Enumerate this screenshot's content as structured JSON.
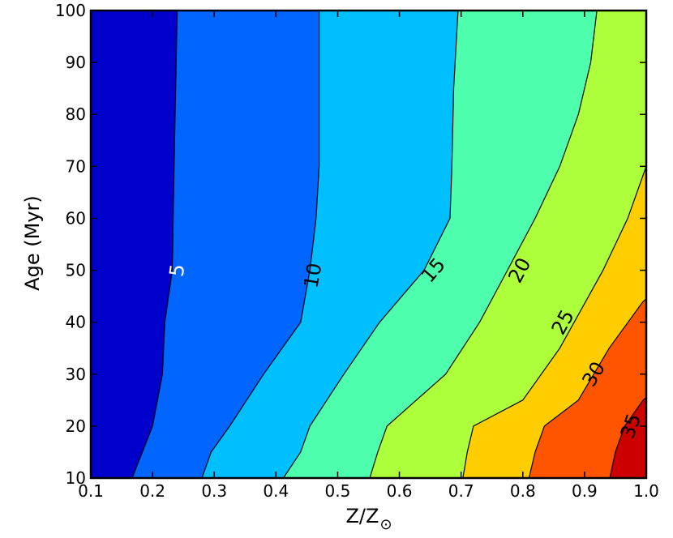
{
  "chart_data": {
    "type": "contour",
    "xlabel": "Z/Z",
    "xlabel_subscript": "⊙",
    "ylabel": "Age (Myr)",
    "xlim": [
      0.1,
      1.0
    ],
    "ylim": [
      10,
      100
    ],
    "x_ticks": [
      0.1,
      0.2,
      0.3,
      0.4,
      0.5,
      0.6,
      0.7,
      0.8,
      0.9,
      1.0
    ],
    "x_tick_labels": [
      "0.1",
      "0.2",
      "0.3",
      "0.4",
      "0.5",
      "0.6",
      "0.7",
      "0.8",
      "0.9",
      "1.0"
    ],
    "y_ticks": [
      10,
      20,
      30,
      40,
      50,
      60,
      70,
      80,
      90,
      100
    ],
    "y_tick_labels": [
      "10",
      "20",
      "30",
      "40",
      "50",
      "60",
      "70",
      "80",
      "90",
      "100"
    ],
    "levels": [
      5,
      10,
      15,
      20,
      25,
      30,
      35
    ],
    "band_colors": [
      "#0000cd",
      "#0066ff",
      "#00bfff",
      "#4dffad",
      "#adff3c",
      "#ffcd00",
      "#ff5500",
      "#cd0000"
    ],
    "contours": [
      {
        "level": 5,
        "label": "5",
        "label_color": "#ffffff",
        "points": [
          [
            0.167,
            10
          ],
          [
            0.2,
            20
          ],
          [
            0.216,
            30
          ],
          [
            0.22,
            40
          ],
          [
            0.232,
            50
          ],
          [
            0.235,
            70
          ],
          [
            0.24,
            100
          ]
        ]
      },
      {
        "level": 10,
        "label": "10",
        "label_color": "#000000",
        "points": [
          [
            0.28,
            10
          ],
          [
            0.295,
            15
          ],
          [
            0.325,
            20
          ],
          [
            0.38,
            30
          ],
          [
            0.44,
            40
          ],
          [
            0.455,
            50
          ],
          [
            0.465,
            60
          ],
          [
            0.47,
            70
          ],
          [
            0.47,
            100
          ]
        ]
      },
      {
        "level": 15,
        "label": "15",
        "label_color": "#000000",
        "points": [
          [
            0.412,
            10
          ],
          [
            0.44,
            15
          ],
          [
            0.455,
            20
          ],
          [
            0.51,
            30
          ],
          [
            0.568,
            40
          ],
          [
            0.64,
            50
          ],
          [
            0.682,
            60
          ],
          [
            0.685,
            70
          ],
          [
            0.688,
            85
          ],
          [
            0.695,
            100
          ]
        ]
      },
      {
        "level": 20,
        "label": "20",
        "label_color": "#000000",
        "points": [
          [
            0.552,
            10
          ],
          [
            0.565,
            15
          ],
          [
            0.58,
            20
          ],
          [
            0.675,
            30
          ],
          [
            0.73,
            40
          ],
          [
            0.775,
            50
          ],
          [
            0.82,
            60
          ],
          [
            0.86,
            70
          ],
          [
            0.89,
            80
          ],
          [
            0.91,
            90
          ],
          [
            0.92,
            100
          ]
        ]
      },
      {
        "level": 25,
        "label": "25",
        "label_color": "#000000",
        "points": [
          [
            0.703,
            10
          ],
          [
            0.71,
            15
          ],
          [
            0.72,
            20
          ],
          [
            0.8,
            25
          ],
          [
            0.86,
            35
          ],
          [
            0.93,
            50
          ],
          [
            0.97,
            60
          ],
          [
            1.0,
            70
          ]
        ]
      },
      {
        "level": 30,
        "label": "30",
        "label_color": "#000000",
        "points": [
          [
            0.81,
            10
          ],
          [
            0.82,
            15
          ],
          [
            0.835,
            20
          ],
          [
            0.89,
            25
          ],
          [
            0.94,
            35
          ],
          [
            0.995,
            44
          ],
          [
            1.0,
            44.5
          ]
        ]
      },
      {
        "level": 35,
        "label": "35",
        "label_color": "#000000",
        "points": [
          [
            0.941,
            10
          ],
          [
            0.95,
            15
          ],
          [
            0.965,
            20
          ],
          [
            0.995,
            25
          ],
          [
            1.0,
            25.5
          ]
        ]
      }
    ],
    "contour_labels": [
      {
        "text": "5",
        "x": 0.24,
        "y": 50,
        "color": "#ffffff"
      },
      {
        "text": "10",
        "x": 0.46,
        "y": 49,
        "color": "#000000"
      },
      {
        "text": "15",
        "x": 0.655,
        "y": 50,
        "color": "#000000"
      },
      {
        "text": "20",
        "x": 0.795,
        "y": 50,
        "color": "#000000"
      },
      {
        "text": "25",
        "x": 0.865,
        "y": 40,
        "color": "#000000"
      },
      {
        "text": "30",
        "x": 0.915,
        "y": 30,
        "color": "#000000"
      },
      {
        "text": "35",
        "x": 0.975,
        "y": 20,
        "color": "#000000"
      }
    ]
  }
}
